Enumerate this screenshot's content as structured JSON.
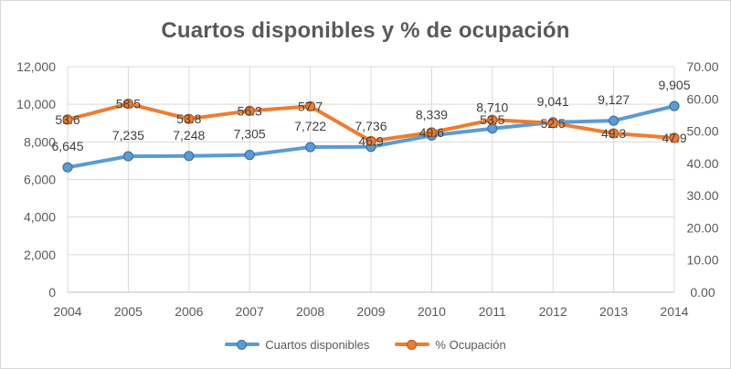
{
  "chart_data": {
    "type": "line",
    "title": "Cuartos disponibles y % de ocupación",
    "categories": [
      "2004",
      "2005",
      "2006",
      "2007",
      "2008",
      "2009",
      "2010",
      "2011",
      "2012",
      "2013",
      "2014"
    ],
    "series": [
      {
        "name": "Cuartos disponibles",
        "axis": "left",
        "color": "#5B9BD5",
        "marker_stroke": "#41719C",
        "label_position": "above",
        "values": [
          6645,
          7235,
          7248,
          7305,
          7722,
          7736,
          8339,
          8710,
          9041,
          9127,
          9905
        ],
        "labels": [
          "6,645",
          "7,235",
          "7,248",
          "7,305",
          "7,722",
          "7,736",
          "8,339",
          "8,710",
          "9,041",
          "9,127",
          "9,905"
        ]
      },
      {
        "name": "% Ocupación",
        "axis": "right",
        "color": "#ED7D31",
        "marker_stroke": "#AE5A21",
        "label_position": "center",
        "values": [
          53.6,
          58.5,
          53.8,
          56.3,
          57.7,
          46.9,
          49.6,
          53.5,
          52.5,
          49.3,
          47.9
        ],
        "labels": [
          "53.6",
          "58.5",
          "53.8",
          "56.3",
          "57.7",
          "46.9",
          "49.6",
          "53.5",
          "52.5",
          "49.3",
          "47.9"
        ]
      }
    ],
    "left_axis": {
      "min": 0,
      "max": 12000,
      "step": 2000,
      "ticks": [
        "0",
        "2,000",
        "4,000",
        "6,000",
        "8,000",
        "10,000",
        "12,000"
      ]
    },
    "right_axis": {
      "min": 0,
      "max": 70,
      "step": 10,
      "ticks": [
        "0.00",
        "10.00",
        "20.00",
        "30.00",
        "40.00",
        "50.00",
        "60.00",
        "70.00"
      ]
    },
    "legend_position": "bottom",
    "grid": true,
    "colors": {
      "background": "#FFFFFF",
      "chart_border": "#D9D9D9",
      "gridline": "#D9D9D9",
      "axis_line": "#BFBFBF",
      "tick_text": "#595959",
      "label_text": "#404040",
      "title_text": "#595959",
      "legend_text": "#595959"
    }
  }
}
